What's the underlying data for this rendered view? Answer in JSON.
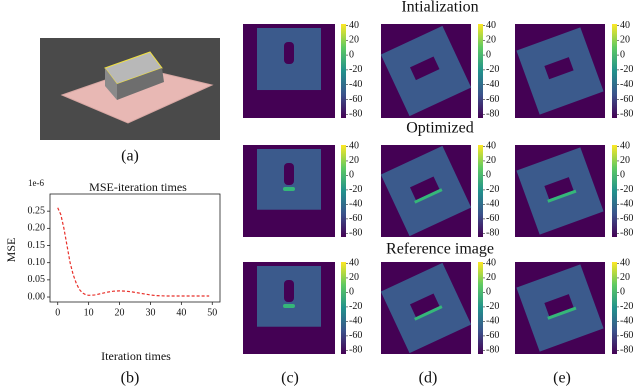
{
  "figure": {
    "panel_labels": [
      "(a)",
      "(b)",
      "(c)",
      "(d)",
      "(e)"
    ],
    "row_titles": [
      "Intialization",
      "Optimized",
      "Reference image"
    ],
    "colorbar": {
      "lim": [
        -85,
        42
      ],
      "ticks": [
        40,
        20,
        0,
        -20,
        -40,
        -60,
        -80
      ]
    }
  },
  "chart_data": {
    "type": "line",
    "title": "MSE-iteration times",
    "x_label": "Iteration times",
    "y_label": "MSE",
    "y_offset_label": "1e-6",
    "x": [
      0,
      1,
      2,
      3,
      4,
      5,
      6,
      7,
      8,
      9,
      10,
      12,
      14,
      16,
      18,
      20,
      22,
      24,
      26,
      28,
      30,
      32,
      35,
      40,
      45,
      49
    ],
    "series": [
      {
        "color": "#e8302a",
        "values": [
          0.26,
          0.24,
          0.2,
          0.15,
          0.1,
          0.065,
          0.04,
          0.022,
          0.012,
          0.007,
          0.005,
          0.006,
          0.01,
          0.014,
          0.017,
          0.018,
          0.017,
          0.015,
          0.012,
          0.009,
          0.006,
          0.004,
          0.003,
          0.003,
          0.003,
          0.003
        ]
      }
    ],
    "line_style": "dashed",
    "xlim": [
      -2.5,
      52.5
    ],
    "ylim": [
      -0.0145,
      0.3
    ],
    "xticks": [
      0,
      10,
      20,
      30,
      40,
      50
    ],
    "yticks": [
      {
        "value": 0,
        "label": "0.00"
      },
      0.05,
      {
        "value": 0.1,
        "label": "0.10"
      },
      0.15,
      {
        "value": 0.2,
        "label": "0.20"
      },
      0.25
    ]
  }
}
